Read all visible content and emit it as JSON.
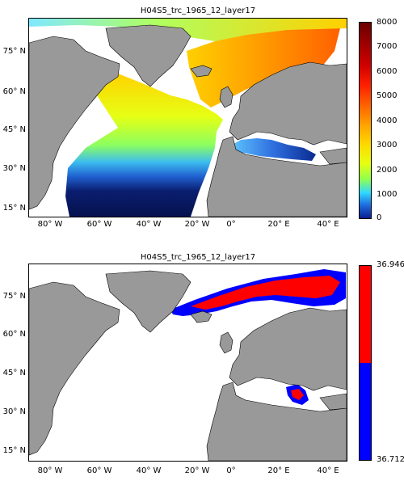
{
  "panel_top": {
    "title": "H04S5_trc_1965_12_layer17",
    "colorbar_ticks": [
      "8000",
      "7000",
      "6000",
      "5000",
      "4000",
      "3000",
      "2000",
      "1000",
      "0"
    ]
  },
  "panel_bottom": {
    "title": "H04S5_trc_1965_12_layer17",
    "colorbar_ticks": [
      "36.946",
      "36.712"
    ]
  },
  "lat_labels": [
    "75° N",
    "60° N",
    "45° N",
    "30° N",
    "15° N"
  ],
  "lon_labels": [
    "80° W",
    "60° W",
    "40° W",
    "20° W",
    "0°",
    "20° E",
    "40° E"
  ],
  "colors": {
    "land": "#999999",
    "ocean_nodata": "#ffffff",
    "high": "#ff0000",
    "low": "#0000ff"
  }
}
